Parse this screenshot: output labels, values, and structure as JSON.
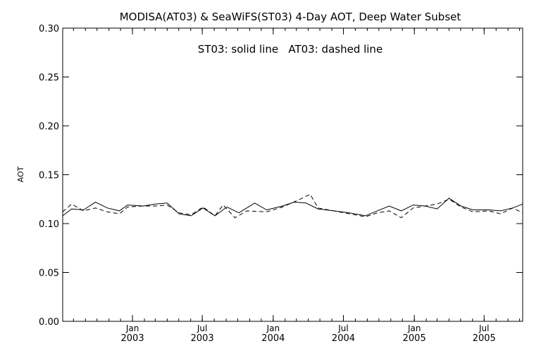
{
  "chart_data": {
    "type": "line",
    "title": "MODISA(AT03) & SeaWiFS(ST03) 4-Day AOT, Deep Water Subset",
    "annotation": "ST03: solid line   AT03: dashed line",
    "ylabel": "AOT",
    "xlabel": "",
    "ylim": [
      0.0,
      0.3
    ],
    "xlim": [
      "2002-07-04",
      "2005-10-09"
    ],
    "yticks": [
      "0.00",
      "0.05",
      "0.10",
      "0.15",
      "0.20",
      "0.25",
      "0.30"
    ],
    "xticks": [
      {
        "date": "2003-01-01",
        "line1": "Jan",
        "line2": "2003"
      },
      {
        "date": "2003-07-01",
        "line1": "Jul",
        "line2": "2003"
      },
      {
        "date": "2004-01-01",
        "line1": "Jan",
        "line2": "2004"
      },
      {
        "date": "2004-07-01",
        "line1": "Jul",
        "line2": "2004"
      },
      {
        "date": "2005-01-01",
        "line1": "Jan",
        "line2": "2005"
      },
      {
        "date": "2005-07-01",
        "line1": "Jul",
        "line2": "2005"
      }
    ],
    "grid": false,
    "legend": "none",
    "series": [
      {
        "name": "ST03",
        "style": "solid",
        "color": "#000000",
        "points": [
          [
            "2002-07-04",
            0.108
          ],
          [
            "2002-07-27",
            0.115
          ],
          [
            "2002-08-27",
            0.114
          ],
          [
            "2002-09-27",
            0.122
          ],
          [
            "2002-10-28",
            0.116
          ],
          [
            "2002-11-28",
            0.113
          ],
          [
            "2002-12-19",
            0.119
          ],
          [
            "2003-01-29",
            0.118
          ],
          [
            "2003-03-01",
            0.12
          ],
          [
            "2003-04-01",
            0.121
          ],
          [
            "2003-05-02",
            0.11
          ],
          [
            "2003-06-02",
            0.108
          ],
          [
            "2003-07-03",
            0.116
          ],
          [
            "2003-08-03",
            0.108
          ],
          [
            "2003-09-03",
            0.117
          ],
          [
            "2003-10-04",
            0.111
          ],
          [
            "2003-11-14",
            0.121
          ],
          [
            "2003-12-15",
            0.114
          ],
          [
            "2004-01-25",
            0.118
          ],
          [
            "2004-02-25",
            0.122
          ],
          [
            "2004-03-26",
            0.121
          ],
          [
            "2004-04-26",
            0.115
          ],
          [
            "2004-06-06",
            0.113
          ],
          [
            "2004-07-17",
            0.111
          ],
          [
            "2004-08-27",
            0.108
          ],
          [
            "2004-09-27",
            0.113
          ],
          [
            "2004-10-28",
            0.118
          ],
          [
            "2004-11-28",
            0.113
          ],
          [
            "2004-12-29",
            0.119
          ],
          [
            "2005-01-29",
            0.118
          ],
          [
            "2005-03-01",
            0.115
          ],
          [
            "2005-04-01",
            0.126
          ],
          [
            "2005-05-02",
            0.118
          ],
          [
            "2005-06-02",
            0.114
          ],
          [
            "2005-07-13",
            0.114
          ],
          [
            "2005-08-13",
            0.113
          ],
          [
            "2005-09-13",
            0.116
          ],
          [
            "2005-10-09",
            0.12
          ]
        ]
      },
      {
        "name": "AT03",
        "style": "dashed",
        "color": "#000000",
        "points": [
          [
            "2002-07-04",
            0.112
          ],
          [
            "2002-07-27",
            0.12
          ],
          [
            "2002-08-27",
            0.113
          ],
          [
            "2002-09-27",
            0.116
          ],
          [
            "2002-10-28",
            0.112
          ],
          [
            "2002-11-28",
            0.11
          ],
          [
            "2002-12-19",
            0.117
          ],
          [
            "2003-01-29",
            0.118
          ],
          [
            "2003-03-01",
            0.118
          ],
          [
            "2003-04-01",
            0.119
          ],
          [
            "2003-05-02",
            0.111
          ],
          [
            "2003-06-02",
            0.109
          ],
          [
            "2003-07-03",
            0.117
          ],
          [
            "2003-08-03",
            0.108
          ],
          [
            "2003-08-24",
            0.119
          ],
          [
            "2003-09-24",
            0.106
          ],
          [
            "2003-10-25",
            0.113
          ],
          [
            "2003-12-15",
            0.112
          ],
          [
            "2004-01-25",
            0.117
          ],
          [
            "2004-03-06",
            0.124
          ],
          [
            "2004-04-06",
            0.13
          ],
          [
            "2004-04-26",
            0.116
          ],
          [
            "2004-06-06",
            0.113
          ],
          [
            "2004-07-17",
            0.11
          ],
          [
            "2004-08-27",
            0.107
          ],
          [
            "2004-09-27",
            0.111
          ],
          [
            "2004-10-28",
            0.113
          ],
          [
            "2004-11-28",
            0.106
          ],
          [
            "2004-12-29",
            0.116
          ],
          [
            "2005-01-29",
            0.118
          ],
          [
            "2005-03-01",
            0.12
          ],
          [
            "2005-04-01",
            0.125
          ],
          [
            "2005-05-02",
            0.117
          ],
          [
            "2005-06-02",
            0.112
          ],
          [
            "2005-07-13",
            0.113
          ],
          [
            "2005-08-13",
            0.11
          ],
          [
            "2005-09-13",
            0.116
          ],
          [
            "2005-10-09",
            0.111
          ]
        ]
      }
    ]
  }
}
